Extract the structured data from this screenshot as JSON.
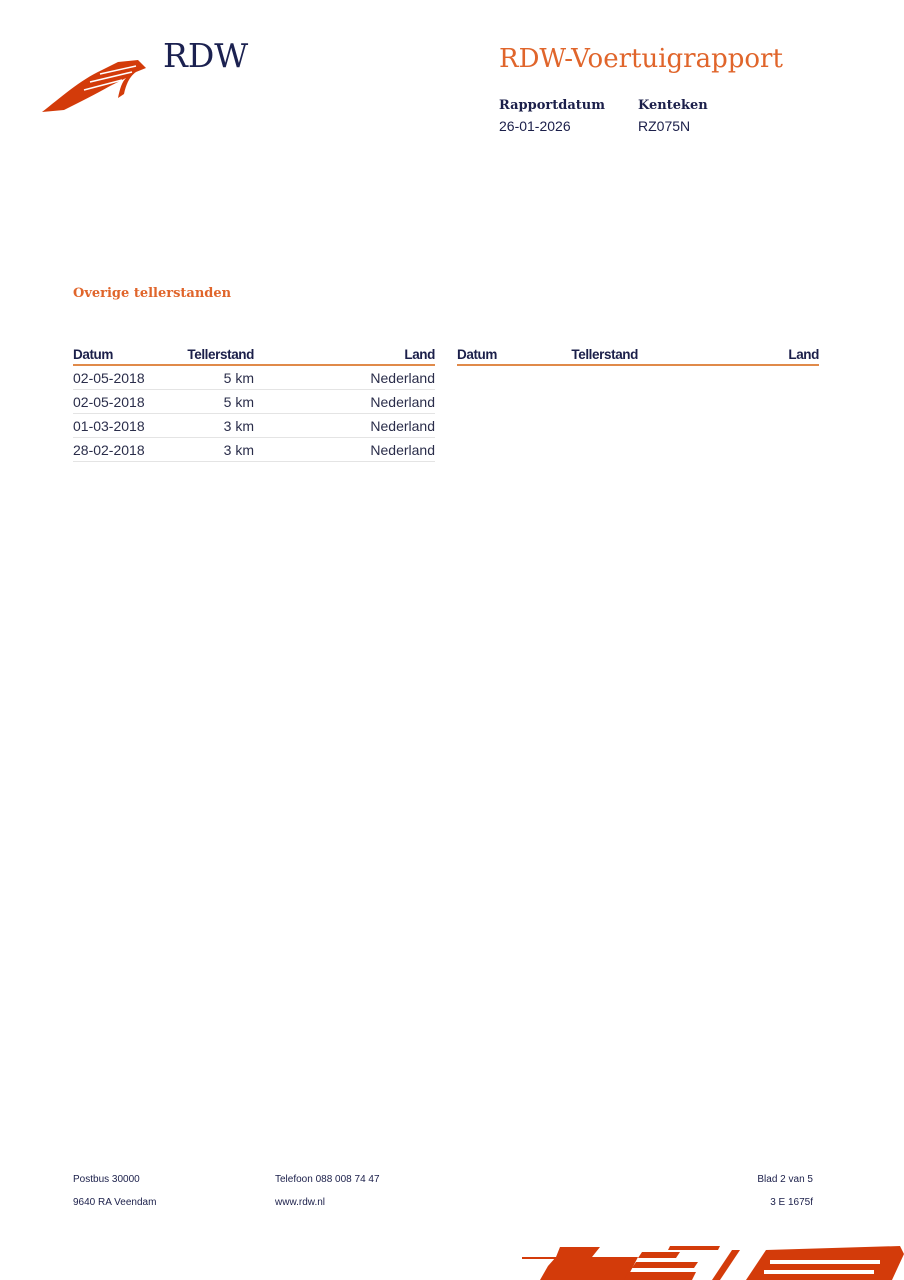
{
  "header": {
    "logo_text": "RDW",
    "title": "RDW-Voertuigrapport",
    "report_date_label": "Rapportdatum",
    "report_date": "26-01-2026",
    "plate_label": "Kenteken",
    "plate": "RZ075N"
  },
  "section": {
    "title": "Overige tellerstanden",
    "columns": [
      "Datum",
      "Tellerstand",
      "Land"
    ],
    "rows": [
      {
        "datum": "02-05-2018",
        "tellerstand": "5 km",
        "land": "Nederland"
      },
      {
        "datum": "02-05-2018",
        "tellerstand": "5 km",
        "land": "Nederland"
      },
      {
        "datum": "01-03-2018",
        "tellerstand": "3 km",
        "land": "Nederland"
      },
      {
        "datum": "28-02-2018",
        "tellerstand": "3 km",
        "land": "Nederland"
      }
    ]
  },
  "footer": {
    "address1": "Postbus 30000",
    "address2": "9640 RA Veendam",
    "phone": "Telefoon 088 008 74 47",
    "website": "www.rdw.nl",
    "page": "Blad 2 van 5",
    "code": "3 E 1675f"
  },
  "colors": {
    "accent": "#e0652b",
    "logo": "#d33b0a",
    "navy": "#1b1f4a"
  }
}
